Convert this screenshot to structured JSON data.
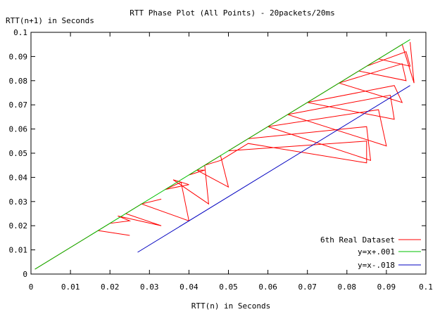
{
  "chart_data": {
    "type": "line",
    "title": "RTT Phase Plot (All Points) - 20packets/20ms",
    "xlabel": "RTT(n) in Seconds",
    "ylabel": "RTT(n+1) in Seconds",
    "xlim": [
      0,
      0.1
    ],
    "ylim": [
      0,
      0.1
    ],
    "xticks": [
      "0",
      "0.01",
      "0.02",
      "0.03",
      "0.04",
      "0.05",
      "0.06",
      "0.07",
      "0.08",
      "0.09",
      "0.1"
    ],
    "yticks": [
      "0",
      "0.01",
      "0.02",
      "0.03",
      "0.04",
      "0.05",
      "0.06",
      "0.07",
      "0.08",
      "0.09",
      "0.1"
    ],
    "grid": false,
    "legend_position": "bottom-right",
    "series": [
      {
        "name": "6th Real Dataset",
        "color": "#ff0000",
        "x": [
          0.001,
          0.017,
          0.025,
          0.017,
          0.02,
          0.025,
          0.022,
          0.033,
          0.024,
          0.028,
          0.033,
          0.028,
          0.04,
          0.038,
          0.034,
          0.04,
          0.036,
          0.045,
          0.044,
          0.04,
          0.044,
          0.042,
          0.05,
          0.048,
          0.044,
          0.048,
          0.055,
          0.085,
          0.085,
          0.05,
          0.056,
          0.06,
          0.086,
          0.085,
          0.055,
          0.06,
          0.065,
          0.09,
          0.088,
          0.06,
          0.064,
          0.07,
          0.092,
          0.091,
          0.065,
          0.07,
          0.078,
          0.094,
          0.092,
          0.07,
          0.075,
          0.083,
          0.095,
          0.094,
          0.078,
          0.082,
          0.088,
          0.096,
          0.095,
          0.085,
          0.09,
          0.094,
          0.097,
          0.096
        ],
        "y": [
          0.002,
          0.018,
          0.016,
          0.018,
          0.021,
          0.022,
          0.024,
          0.02,
          0.025,
          0.029,
          0.031,
          0.029,
          0.022,
          0.038,
          0.035,
          0.037,
          0.039,
          0.029,
          0.045,
          0.041,
          0.043,
          0.043,
          0.036,
          0.049,
          0.045,
          0.047,
          0.054,
          0.046,
          0.055,
          0.051,
          0.057,
          0.061,
          0.047,
          0.061,
          0.056,
          0.061,
          0.066,
          0.053,
          0.068,
          0.061,
          0.065,
          0.071,
          0.064,
          0.074,
          0.066,
          0.071,
          0.079,
          0.071,
          0.078,
          0.071,
          0.076,
          0.084,
          0.08,
          0.087,
          0.079,
          0.083,
          0.089,
          0.086,
          0.092,
          0.086,
          0.091,
          0.095,
          0.079,
          0.096
        ]
      },
      {
        "name": "y=x+.001",
        "color": "#00c000",
        "x": [
          0.001,
          0.096
        ],
        "y": [
          0.002,
          0.097
        ]
      },
      {
        "name": "y=x-.018",
        "color": "#0000c0",
        "x": [
          0.027,
          0.096
        ],
        "y": [
          0.009,
          0.078
        ]
      }
    ]
  }
}
